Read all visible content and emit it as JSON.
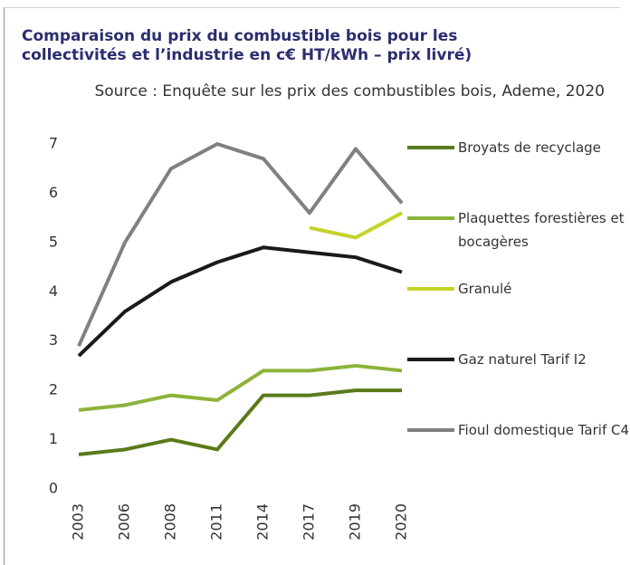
{
  "chart_data": {
    "type": "line",
    "title": "Comparaison du prix du combustible bois pour les collectivités et l’industrie en c€ HT/kWh – prix livré)",
    "subtitle": "Source : Enquête sur les prix des combustibles bois, Ademe, 2020",
    "categories": [
      "2003",
      "2006",
      "2008",
      "2011",
      "2014",
      "2017",
      "2019",
      "2020"
    ],
    "series": [
      {
        "name": "Broyats de recyclage",
        "color": "#5a7a1a",
        "values": [
          0.7,
          0.8,
          1.0,
          0.8,
          1.9,
          1.9,
          2.0,
          2.0
        ]
      },
      {
        "name": "Plaquettes forestières et bocagères",
        "color": "#8db33a",
        "values": [
          1.6,
          1.7,
          1.9,
          1.8,
          2.4,
          2.4,
          2.5,
          2.4
        ]
      },
      {
        "name": "Granulé",
        "color": "#c5d22a",
        "values": [
          null,
          null,
          null,
          null,
          null,
          5.3,
          5.1,
          5.6
        ]
      },
      {
        "name": "Gaz naturel Tarif I2",
        "color": "#1a1a1a",
        "values": [
          2.7,
          3.6,
          4.2,
          4.6,
          4.9,
          4.8,
          4.7,
          4.4
        ]
      },
      {
        "name": "Fioul domestique Tarif C4",
        "color": "#808080",
        "values": [
          2.9,
          5.0,
          6.5,
          7.0,
          6.7,
          5.6,
          6.9,
          5.8
        ]
      }
    ],
    "ylim": [
      0,
      7
    ],
    "yticks": [
      0,
      1,
      2,
      3,
      4,
      5,
      6,
      7
    ],
    "grid": false,
    "legend": "right"
  }
}
